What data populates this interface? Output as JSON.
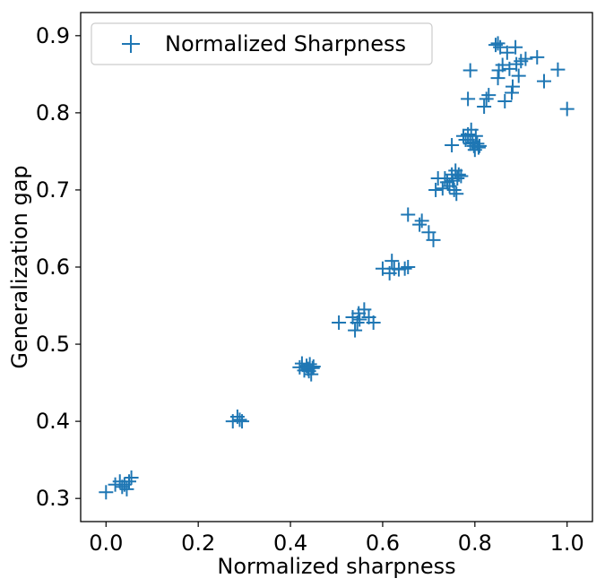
{
  "chart_data": {
    "type": "scatter",
    "title": "",
    "xlabel": "Normalized sharpness",
    "ylabel": "Generalization gap",
    "xlim": [
      -0.055,
      1.055
    ],
    "ylim": [
      0.27,
      0.93
    ],
    "xticks": [
      "0.0",
      "0.2",
      "0.4",
      "0.6",
      "0.8",
      "1.0"
    ],
    "yticks": [
      "0.3",
      "0.4",
      "0.5",
      "0.6",
      "0.7",
      "0.8",
      "0.9"
    ],
    "grid": false,
    "legend": {
      "placement": "top-left",
      "entries": [
        "Normalized Sharpness"
      ]
    },
    "series": [
      {
        "name": "Normalized Sharpness",
        "marker": "plus",
        "color": "#1f77b4",
        "points": [
          [
            0.0,
            0.308
          ],
          [
            0.02,
            0.318
          ],
          [
            0.03,
            0.322
          ],
          [
            0.035,
            0.315
          ],
          [
            0.04,
            0.318
          ],
          [
            0.045,
            0.312
          ],
          [
            0.05,
            0.322
          ],
          [
            0.055,
            0.327
          ],
          [
            0.275,
            0.4
          ],
          [
            0.285,
            0.406
          ],
          [
            0.29,
            0.402
          ],
          [
            0.295,
            0.4
          ],
          [
            0.42,
            0.47
          ],
          [
            0.425,
            0.475
          ],
          [
            0.43,
            0.466
          ],
          [
            0.435,
            0.472
          ],
          [
            0.438,
            0.468
          ],
          [
            0.44,
            0.465
          ],
          [
            0.442,
            0.474
          ],
          [
            0.445,
            0.461
          ],
          [
            0.448,
            0.469
          ],
          [
            0.45,
            0.471
          ],
          [
            0.505,
            0.528
          ],
          [
            0.535,
            0.535
          ],
          [
            0.54,
            0.518
          ],
          [
            0.545,
            0.528
          ],
          [
            0.548,
            0.54
          ],
          [
            0.55,
            0.532
          ],
          [
            0.56,
            0.545
          ],
          [
            0.57,
            0.535
          ],
          [
            0.58,
            0.528
          ],
          [
            0.6,
            0.598
          ],
          [
            0.615,
            0.592
          ],
          [
            0.62,
            0.608
          ],
          [
            0.625,
            0.598
          ],
          [
            0.635,
            0.597
          ],
          [
            0.648,
            0.598
          ],
          [
            0.655,
            0.6
          ],
          [
            0.655,
            0.668
          ],
          [
            0.68,
            0.655
          ],
          [
            0.685,
            0.66
          ],
          [
            0.7,
            0.645
          ],
          [
            0.71,
            0.635
          ],
          [
            0.715,
            0.7
          ],
          [
            0.72,
            0.715
          ],
          [
            0.73,
            0.702
          ],
          [
            0.735,
            0.715
          ],
          [
            0.74,
            0.71
          ],
          [
            0.745,
            0.705
          ],
          [
            0.75,
            0.72
          ],
          [
            0.752,
            0.712
          ],
          [
            0.755,
            0.7
          ],
          [
            0.758,
            0.725
          ],
          [
            0.76,
            0.695
          ],
          [
            0.762,
            0.715
          ],
          [
            0.765,
            0.72
          ],
          [
            0.77,
            0.718
          ],
          [
            0.75,
            0.758
          ],
          [
            0.775,
            0.77
          ],
          [
            0.78,
            0.765
          ],
          [
            0.785,
            0.772
          ],
          [
            0.79,
            0.76
          ],
          [
            0.792,
            0.778
          ],
          [
            0.795,
            0.762
          ],
          [
            0.798,
            0.757
          ],
          [
            0.8,
            0.752
          ],
          [
            0.802,
            0.77
          ],
          [
            0.805,
            0.76
          ],
          [
            0.808,
            0.755
          ],
          [
            0.81,
            0.757
          ],
          [
            0.785,
            0.818
          ],
          [
            0.79,
            0.855
          ],
          [
            0.82,
            0.808
          ],
          [
            0.825,
            0.818
          ],
          [
            0.83,
            0.823
          ],
          [
            0.845,
            0.888
          ],
          [
            0.85,
            0.89
          ],
          [
            0.85,
            0.845
          ],
          [
            0.852,
            0.855
          ],
          [
            0.855,
            0.885
          ],
          [
            0.86,
            0.862
          ],
          [
            0.865,
            0.815
          ],
          [
            0.87,
            0.878
          ],
          [
            0.875,
            0.857
          ],
          [
            0.88,
            0.826
          ],
          [
            0.882,
            0.834
          ],
          [
            0.888,
            0.885
          ],
          [
            0.89,
            0.863
          ],
          [
            0.895,
            0.848
          ],
          [
            0.9,
            0.867
          ],
          [
            0.91,
            0.87
          ],
          [
            0.935,
            0.872
          ],
          [
            0.95,
            0.841
          ],
          [
            0.98,
            0.856
          ],
          [
            1.0,
            0.805
          ]
        ]
      }
    ]
  }
}
